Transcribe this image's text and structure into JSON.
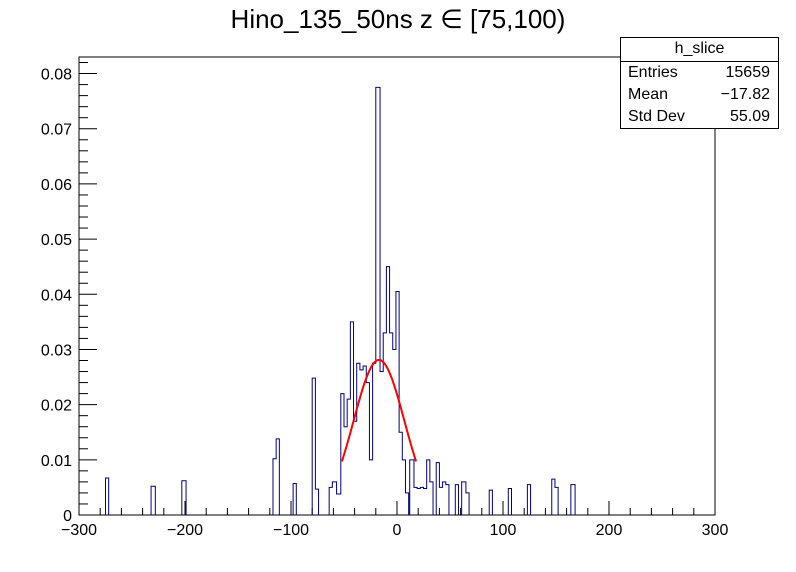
{
  "chart_data": {
    "type": "histogram",
    "title": "Hino_135_50ns z  ∈ [75,100)",
    "xlabel": "",
    "ylabel": "",
    "xlim": [
      -300,
      300
    ],
    "ylim": [
      0,
      0.083
    ],
    "x_ticks": [
      -300,
      -200,
      -100,
      0,
      100,
      200,
      300
    ],
    "x_tick_labels": [
      "−300",
      "−200",
      "−100",
      "0",
      "100",
      "200",
      "300"
    ],
    "y_ticks": [
      0,
      0.01,
      0.02,
      0.03,
      0.04,
      0.05,
      0.06,
      0.07,
      0.08
    ],
    "y_tick_labels": [
      "0",
      "0.01",
      "0.02",
      "0.03",
      "0.04",
      "0.05",
      "0.06",
      "0.07",
      "0.08"
    ],
    "grid": false,
    "histogram": {
      "name": "h_slice",
      "color": "#000080",
      "bins": [
        [
          -275,
          -272,
          0.0067
        ],
        [
          -232,
          -228,
          0.0052
        ],
        [
          -203,
          -199,
          0.0062
        ],
        [
          -117,
          -114,
          0.0102
        ],
        [
          -114,
          -111,
          0.0138
        ],
        [
          -98,
          -95,
          0.0057
        ],
        [
          -80,
          -77,
          0.0248
        ],
        [
          -77,
          -74,
          0.0047
        ],
        [
          -64,
          -61,
          0.005
        ],
        [
          -61,
          -57,
          0.006
        ],
        [
          -57,
          -53,
          0.0038
        ],
        [
          -53,
          -50,
          0.022
        ],
        [
          -50,
          -47,
          0.016
        ],
        [
          -47,
          -44,
          0.021
        ],
        [
          -44,
          -41,
          0.035
        ],
        [
          -41,
          -38,
          0.017
        ],
        [
          -38,
          -35,
          0.0275
        ],
        [
          -35,
          -32,
          0.0263
        ],
        [
          -32,
          -29,
          0.027
        ],
        [
          -29,
          -26,
          0.024
        ],
        [
          -26,
          -23,
          0.01
        ],
        [
          -23,
          -20,
          0.0275
        ],
        [
          -20,
          -16,
          0.0775
        ],
        [
          -16,
          -13,
          0.026
        ],
        [
          -13,
          -10,
          0.033
        ],
        [
          -10,
          -7,
          0.045
        ],
        [
          -7,
          -4,
          0.033
        ],
        [
          -4,
          -1,
          0.03
        ],
        [
          -1,
          2,
          0.0405
        ],
        [
          2,
          5,
          0.015
        ],
        [
          5,
          8,
          0.01
        ],
        [
          8,
          11,
          0.004
        ],
        [
          12,
          16,
          0.01
        ],
        [
          16,
          19,
          0.005
        ],
        [
          19,
          22,
          0.0048
        ],
        [
          22,
          25,
          0.005
        ],
        [
          25,
          28,
          0.0048
        ],
        [
          28,
          31,
          0.01
        ],
        [
          31,
          34,
          0.006
        ],
        [
          37,
          40,
          0.0095
        ],
        [
          40,
          43,
          0.005
        ],
        [
          43,
          46,
          0.006
        ],
        [
          46,
          49,
          0.0055
        ],
        [
          55,
          58,
          0.0055
        ],
        [
          61,
          65,
          0.006
        ],
        [
          65,
          68,
          0.004
        ],
        [
          87,
          90,
          0.0045
        ],
        [
          105,
          108,
          0.0048
        ],
        [
          123,
          126,
          0.0055
        ],
        [
          146,
          149,
          0.0065
        ],
        [
          149,
          152,
          0.005
        ],
        [
          164,
          168,
          0.0055
        ]
      ]
    },
    "fit": {
      "type": "gaussian",
      "color": "#ff0000",
      "amplitude": 0.0281,
      "mean": -17,
      "sigma": 24,
      "x_range": [
        -52,
        18
      ]
    },
    "stats": {
      "title": "h_slice",
      "rows": [
        {
          "label": "Entries",
          "value": "15659"
        },
        {
          "label": "Mean",
          "value": "−17.82"
        },
        {
          "label": "Std Dev",
          "value": "55.09"
        }
      ]
    }
  }
}
